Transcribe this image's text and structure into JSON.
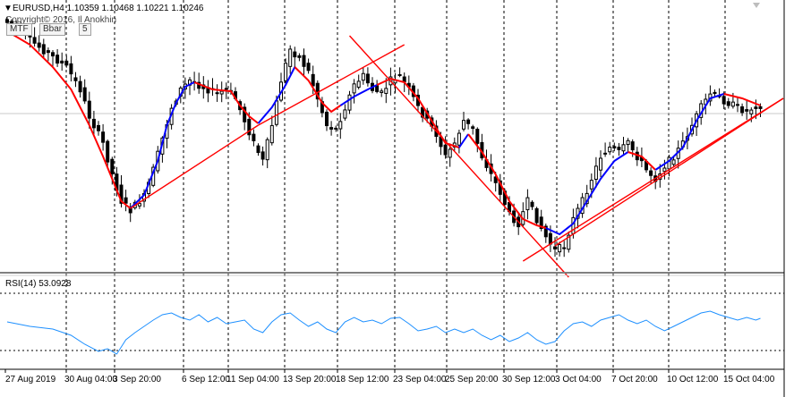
{
  "header": {
    "symbol_line": "EURUSD,H4  1.10359 1.10468 1.10221 1.10246",
    "copyright": "Copyright© 2016, Il Anokhin",
    "buttons": [
      "MTF",
      "Bbar",
      "5"
    ]
  },
  "indicator": {
    "label": "RSI(14) 53.0928"
  },
  "colors": {
    "grid": "#000000",
    "candle": "#000000",
    "ma_up": "#0000ff",
    "ma_down": "#ff0000",
    "trendline": "#ff0000",
    "rsi": "#1e90ff",
    "current_price_line": "#c0c0c0"
  },
  "x_axis": {
    "ticks": [
      "27 Aug 2019",
      "30 Aug 04:00",
      "3 Sep 20:00",
      "6 Sep 12:00",
      "11 Sep 04:00",
      "13 Sep 20:00",
      "18 Sep 12:00",
      "23 Sep 04:00",
      "25 Sep 20:00",
      "30 Sep 12:00",
      "3 Oct 04:00",
      "7 Oct 20:00",
      "10 Oct 12:00",
      "15 Oct 04:00"
    ]
  },
  "chart_data": {
    "type": "candlestick",
    "symbol": "EURUSD",
    "timeframe": "H4",
    "ohlc_last": {
      "open": 1.10359,
      "high": 1.10468,
      "low": 1.10221,
      "close": 1.10246
    },
    "price_path": [
      [
        0,
        22
      ],
      [
        3,
        30
      ],
      [
        6,
        45
      ],
      [
        10,
        60
      ],
      [
        14,
        75
      ],
      [
        17,
        100
      ],
      [
        19,
        130
      ],
      [
        22,
        160
      ],
      [
        24,
        195
      ],
      [
        26,
        225
      ],
      [
        28,
        235
      ],
      [
        31,
        220
      ],
      [
        33,
        190
      ],
      [
        35,
        155
      ],
      [
        37,
        120
      ],
      [
        39,
        100
      ],
      [
        41,
        90
      ],
      [
        43,
        95
      ],
      [
        45,
        100
      ],
      [
        47,
        105
      ],
      [
        49,
        100
      ],
      [
        51,
        110
      ],
      [
        53,
        135
      ],
      [
        55,
        160
      ],
      [
        57,
        180
      ],
      [
        59,
        140
      ],
      [
        61,
        90
      ],
      [
        63,
        55
      ],
      [
        65,
        65
      ],
      [
        67,
        80
      ],
      [
        69,
        110
      ],
      [
        71,
        140
      ],
      [
        73,
        145
      ],
      [
        75,
        120
      ],
      [
        77,
        95
      ],
      [
        79,
        85
      ],
      [
        81,
        100
      ],
      [
        83,
        105
      ],
      [
        85,
        90
      ],
      [
        87,
        85
      ],
      [
        89,
        100
      ],
      [
        91,
        120
      ],
      [
        93,
        135
      ],
      [
        95,
        150
      ],
      [
        97,
        175
      ],
      [
        99,
        160
      ],
      [
        101,
        135
      ],
      [
        103,
        145
      ],
      [
        105,
        175
      ],
      [
        107,
        195
      ],
      [
        109,
        215
      ],
      [
        111,
        240
      ],
      [
        113,
        250
      ],
      [
        115,
        225
      ],
      [
        117,
        245
      ],
      [
        119,
        265
      ],
      [
        121,
        280
      ],
      [
        123,
        275
      ],
      [
        125,
        245
      ],
      [
        127,
        225
      ],
      [
        129,
        200
      ],
      [
        131,
        175
      ],
      [
        133,
        165
      ],
      [
        135,
        170
      ],
      [
        137,
        160
      ],
      [
        139,
        175
      ],
      [
        141,
        190
      ],
      [
        143,
        200
      ],
      [
        145,
        185
      ],
      [
        147,
        175
      ],
      [
        149,
        160
      ],
      [
        151,
        140
      ],
      [
        153,
        120
      ],
      [
        155,
        105
      ],
      [
        157,
        110
      ],
      [
        159,
        115
      ],
      [
        161,
        120
      ],
      [
        163,
        125
      ],
      [
        165,
        118
      ]
    ],
    "ma_segments": [
      {
        "color": "red",
        "pts": [
          [
            0,
            35
          ],
          [
            5,
            50
          ],
          [
            10,
            75
          ],
          [
            14,
            100
          ],
          [
            18,
            140
          ],
          [
            21,
            175
          ],
          [
            23,
            200
          ],
          [
            25,
            225
          ],
          [
            27,
            233
          ]
        ]
      },
      {
        "color": "blue",
        "pts": [
          [
            27,
            233
          ],
          [
            30,
            218
          ],
          [
            33,
            180
          ],
          [
            35,
            140
          ],
          [
            37,
            115
          ],
          [
            39,
            97
          ],
          [
            41,
            92
          ]
        ]
      },
      {
        "color": "red",
        "pts": [
          [
            41,
            92
          ],
          [
            45,
            100
          ],
          [
            49,
            102
          ],
          [
            51,
            118
          ],
          [
            53,
            130
          ],
          [
            55,
            138
          ]
        ]
      },
      {
        "color": "blue",
        "pts": [
          [
            55,
            138
          ],
          [
            58,
            120
          ],
          [
            61,
            95
          ],
          [
            63,
            75
          ]
        ]
      },
      {
        "color": "red",
        "pts": [
          [
            63,
            75
          ],
          [
            66,
            90
          ],
          [
            69,
            115
          ],
          [
            71,
            125
          ],
          [
            73,
            118
          ]
        ]
      },
      {
        "color": "blue",
        "pts": [
          [
            73,
            118
          ],
          [
            76,
            108
          ],
          [
            79,
            100
          ],
          [
            81,
            95
          ]
        ]
      },
      {
        "color": "red",
        "pts": [
          [
            81,
            95
          ],
          [
            84,
            88
          ],
          [
            87,
            92
          ],
          [
            90,
            110
          ],
          [
            93,
            135
          ],
          [
            96,
            160
          ],
          [
            99,
            165
          ]
        ]
      },
      {
        "color": "blue",
        "pts": [
          [
            99,
            165
          ],
          [
            101,
            150
          ]
        ]
      },
      {
        "color": "red",
        "pts": [
          [
            101,
            150
          ],
          [
            104,
            170
          ],
          [
            107,
            195
          ],
          [
            110,
            225
          ],
          [
            113,
            245
          ],
          [
            116,
            252
          ],
          [
            118,
            255
          ]
        ]
      },
      {
        "color": "blue",
        "pts": [
          [
            118,
            255
          ],
          [
            121,
            262
          ],
          [
            124,
            250
          ],
          [
            127,
            225
          ],
          [
            130,
            200
          ],
          [
            133,
            180
          ],
          [
            136,
            170
          ]
        ]
      },
      {
        "color": "red",
        "pts": [
          [
            136,
            170
          ],
          [
            139,
            175
          ],
          [
            142,
            190
          ]
        ]
      },
      {
        "color": "blue",
        "pts": [
          [
            142,
            190
          ],
          [
            145,
            180
          ],
          [
            148,
            165
          ],
          [
            151,
            135
          ],
          [
            154,
            110
          ],
          [
            157,
            105
          ]
        ]
      },
      {
        "color": "red",
        "pts": [
          [
            157,
            105
          ],
          [
            161,
            110
          ],
          [
            165,
            118
          ]
        ]
      }
    ],
    "rsi_path": [
      [
        0,
        360
      ],
      [
        5,
        365
      ],
      [
        10,
        368
      ],
      [
        14,
        375
      ],
      [
        17,
        385
      ],
      [
        20,
        393
      ],
      [
        22,
        390
      ],
      [
        24,
        396
      ],
      [
        26,
        380
      ],
      [
        28,
        372
      ],
      [
        30,
        365
      ],
      [
        32,
        358
      ],
      [
        34,
        352
      ],
      [
        36,
        350
      ],
      [
        38,
        355
      ],
      [
        40,
        358
      ],
      [
        42,
        352
      ],
      [
        44,
        360
      ],
      [
        46,
        355
      ],
      [
        48,
        362
      ],
      [
        50,
        360
      ],
      [
        52,
        358
      ],
      [
        54,
        368
      ],
      [
        56,
        372
      ],
      [
        58,
        360
      ],
      [
        60,
        352
      ],
      [
        62,
        350
      ],
      [
        64,
        358
      ],
      [
        66,
        365
      ],
      [
        68,
        360
      ],
      [
        70,
        368
      ],
      [
        72,
        372
      ],
      [
        74,
        360
      ],
      [
        76,
        355
      ],
      [
        78,
        360
      ],
      [
        80,
        358
      ],
      [
        82,
        362
      ],
      [
        84,
        356
      ],
      [
        86,
        355
      ],
      [
        88,
        362
      ],
      [
        90,
        370
      ],
      [
        92,
        368
      ],
      [
        94,
        365
      ],
      [
        96,
        372
      ],
      [
        98,
        368
      ],
      [
        100,
        372
      ],
      [
        102,
        368
      ],
      [
        104,
        375
      ],
      [
        106,
        380
      ],
      [
        108,
        375
      ],
      [
        110,
        382
      ],
      [
        112,
        378
      ],
      [
        114,
        372
      ],
      [
        116,
        380
      ],
      [
        118,
        385
      ],
      [
        120,
        382
      ],
      [
        122,
        370
      ],
      [
        124,
        362
      ],
      [
        126,
        360
      ],
      [
        128,
        365
      ],
      [
        130,
        358
      ],
      [
        132,
        355
      ],
      [
        134,
        352
      ],
      [
        136,
        358
      ],
      [
        138,
        362
      ],
      [
        140,
        358
      ],
      [
        142,
        365
      ],
      [
        144,
        370
      ],
      [
        146,
        365
      ],
      [
        148,
        360
      ],
      [
        150,
        355
      ],
      [
        152,
        350
      ],
      [
        154,
        348
      ],
      [
        156,
        352
      ],
      [
        158,
        355
      ],
      [
        160,
        358
      ],
      [
        162,
        355
      ],
      [
        164,
        358
      ],
      [
        165,
        356
      ]
    ],
    "trendlines": [
      {
        "from": [
          27,
          233
        ],
        "to": [
          55,
          140
        ]
      },
      {
        "from": [
          55,
          140
        ],
        "to": [
          87,
          50
        ]
      },
      {
        "from": [
          75,
          40
        ],
        "to": [
          123,
          310
        ]
      },
      {
        "from": [
          113,
          292
        ],
        "to": [
          170,
          110
        ]
      },
      {
        "from": [
          120,
          275
        ],
        "to": [
          170,
          110
        ]
      }
    ]
  }
}
